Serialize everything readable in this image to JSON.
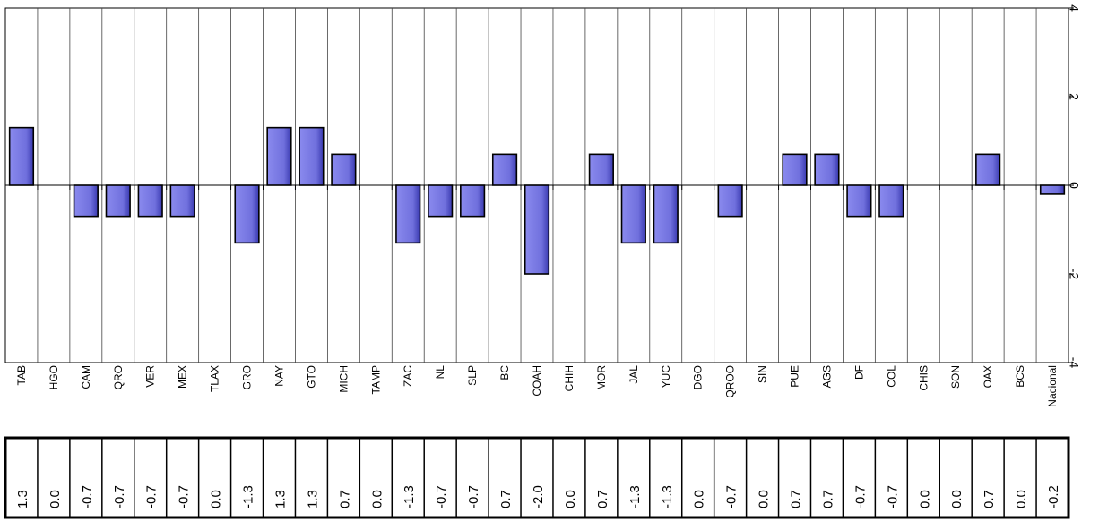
{
  "chart_data": {
    "type": "bar",
    "categories": [
      "TAB",
      "HGO",
      "CAM",
      "QRO",
      "VER",
      "MEX",
      "TLAX",
      "GRO",
      "NAY",
      "GTO",
      "MICH",
      "TAMP",
      "ZAC",
      "NL",
      "SLP",
      "BC",
      "COAH",
      "CHIH",
      "MOR",
      "JAL",
      "YUC",
      "DGO",
      "QROO",
      "SIN",
      "PUE",
      "AGS",
      "DF",
      "COL",
      "CHIS",
      "SON",
      "OAX",
      "BCS",
      "Nacional"
    ],
    "values": [
      1.3,
      0.0,
      -0.7,
      -0.7,
      -0.7,
      -0.7,
      0.0,
      -1.3,
      1.3,
      1.3,
      0.7,
      0.0,
      -1.3,
      -0.7,
      -0.7,
      0.7,
      -2.0,
      0.0,
      0.7,
      -1.3,
      -1.3,
      0.0,
      -0.7,
      0.0,
      0.7,
      0.7,
      -0.7,
      -0.7,
      0.0,
      0.0,
      0.7,
      0.0,
      -0.2
    ],
    "value_labels": [
      "1.3",
      "0.0",
      "-0.7",
      "-0.7",
      "-0.7",
      "-0.7",
      "0.0",
      "-1.3",
      "1.3",
      "1.3",
      "0.7",
      "0.0",
      "-1.3",
      "-0.7",
      "-0.7",
      "0.7",
      "-2.0",
      "0.0",
      "0.7",
      "-1.3",
      "-1.3",
      "0.0",
      "-0.7",
      "0.0",
      "0.7",
      "0.7",
      "-0.7",
      "-0.7",
      "0.0",
      "0.0",
      "0.7",
      "0.0",
      "-0.2"
    ],
    "ylim": [
      -4,
      4
    ],
    "yticks": [
      4,
      2,
      0,
      -2,
      -4
    ],
    "ytick_labels": [
      "4",
      "2",
      "0",
      "-2",
      "-4"
    ],
    "axis_position": "right",
    "title": "",
    "xlabel": "",
    "ylabel": "",
    "grid": "vertical separators",
    "bar_color": "#8a8aee",
    "bar_color_dark": "#3a3ab0",
    "outline_color": "#000000"
  }
}
